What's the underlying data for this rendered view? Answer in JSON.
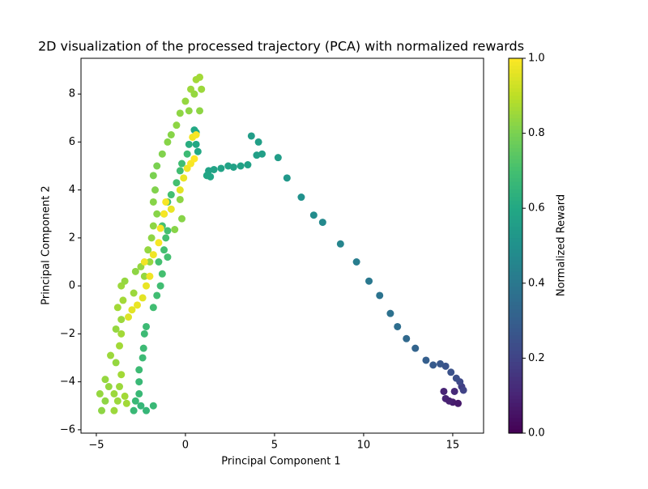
{
  "chart_data": {
    "type": "scatter",
    "title": "2D visualization of the processed trajectory (PCA) with normalized rewards",
    "xlabel": "Principal Component 1",
    "ylabel": "Principal Component 2",
    "colorbar_label": "Normalized Reward",
    "colormap": "viridis",
    "xlim": [
      -5.86,
      16.73
    ],
    "ylim": [
      -6.14,
      9.49
    ],
    "clim": [
      0,
      1
    ],
    "xticks": [
      {
        "value": -5,
        "label": "−5"
      },
      0,
      5,
      10,
      15
    ],
    "yticks": [
      {
        "value": -6,
        "label": "−6"
      },
      {
        "value": -4,
        "label": "−4"
      },
      {
        "value": -2,
        "label": "−2"
      },
      0,
      2,
      4,
      6,
      8
    ],
    "cticks": [
      {
        "value": 0,
        "label": "0.0"
      },
      {
        "value": 0.2,
        "label": "0.2"
      },
      {
        "value": 0.4,
        "label": "0.4"
      },
      {
        "value": 0.6,
        "label": "0.6"
      },
      {
        "value": 0.8,
        "label": "0.8"
      },
      {
        "value": 1,
        "label": "1.0"
      }
    ],
    "x": [
      14.5,
      14.6,
      15.0,
      15.3,
      14.8,
      15.1,
      15.5,
      15.6,
      15.4,
      15.2,
      14.9,
      14.6,
      14.3,
      13.9,
      13.5,
      12.9,
      12.4,
      11.9,
      11.5,
      10.9,
      10.3,
      9.6,
      8.7,
      7.7,
      7.2,
      6.5,
      5.7,
      5.2,
      4.3,
      4.0,
      4.1,
      3.7,
      3.5,
      3.1,
      2.7,
      2.4,
      2.0,
      1.6,
      1.3,
      1.4,
      1.2,
      0.6,
      0.6,
      0.7,
      0.2,
      0.5,
      -2.5,
      -2.2,
      -1.8,
      -2.8,
      -2.9,
      -2.6,
      -2.6,
      -2.6,
      -2.4,
      -2.35,
      -2.3,
      -2.2,
      -1.8,
      -1.6,
      -1.4,
      -1.3,
      -1.5,
      -1.2,
      -1.1,
      -1.0,
      -1.2,
      -1.0,
      -0.8,
      -0.5,
      -0.3,
      -0.2,
      0.1,
      -1.0,
      -1.3,
      -4.7,
      -4.5,
      -4.8,
      -4.3,
      -4.5,
      -4.0,
      -4.0,
      -3.8,
      -3.7,
      -3.6,
      -3.9,
      -4.2,
      -3.7,
      -3.3,
      -3.4,
      -3.6,
      -3.9,
      -3.6,
      -3.8,
      -3.5,
      -3.6,
      -3.4,
      -2.9,
      -2.8,
      -2.5,
      -2.3,
      -2.0,
      -2.1,
      -1.9,
      -1.8,
      -1.6,
      -1.8,
      -1.7,
      -1.8,
      -1.6,
      -1.3,
      -1.0,
      -0.8,
      -0.5,
      -0.3,
      0.0,
      0.3,
      0.6,
      0.8,
      0.5,
      0.8,
      0.2,
      0.9,
      -0.6,
      -0.3,
      -0.2,
      -2.2,
      -2.0,
      -2.4,
      -2.3,
      -1.8,
      -1.5,
      -1.4,
      -1.2,
      -1.1,
      -0.8,
      -0.3,
      -0.1,
      0.1,
      0.3,
      0.5,
      0.4,
      0.6,
      -3.2,
      -3.0,
      -2.7
    ],
    "y": [
      -4.4,
      -4.7,
      -4.85,
      -4.9,
      -4.8,
      -4.4,
      -4.2,
      -4.35,
      -4.0,
      -3.85,
      -3.6,
      -3.35,
      -3.25,
      -3.3,
      -3.1,
      -2.6,
      -2.2,
      -1.7,
      -1.15,
      -0.4,
      0.2,
      1.0,
      1.75,
      2.65,
      2.95,
      3.7,
      4.5,
      5.35,
      5.5,
      5.45,
      6.0,
      6.25,
      5.05,
      5.0,
      4.95,
      5.0,
      4.9,
      4.85,
      4.8,
      4.55,
      4.6,
      6.4,
      5.9,
      5.6,
      5.9,
      6.5,
      -5.0,
      -5.2,
      -5.0,
      -4.8,
      -5.2,
      -4.5,
      -4.0,
      -3.5,
      -3.0,
      -2.6,
      -2.0,
      -1.7,
      -0.9,
      -0.4,
      0.0,
      0.5,
      1.0,
      1.5,
      2.0,
      2.3,
      3.0,
      3.5,
      3.8,
      4.3,
      4.8,
      5.1,
      5.5,
      1.2,
      2.5,
      -5.2,
      -4.8,
      -4.5,
      -4.2,
      -3.9,
      -4.5,
      -5.2,
      -4.8,
      -4.2,
      -3.7,
      -3.2,
      -2.9,
      -2.5,
      -4.9,
      -4.6,
      -2.0,
      -1.8,
      -1.4,
      -0.9,
      -0.6,
      0.0,
      0.2,
      -0.3,
      0.6,
      0.8,
      0.4,
      1.0,
      1.5,
      2.0,
      2.5,
      3.0,
      3.5,
      4.0,
      4.6,
      5.0,
      5.5,
      6.0,
      6.3,
      6.7,
      7.2,
      7.7,
      8.2,
      8.6,
      8.7,
      8.0,
      7.3,
      7.3,
      8.2,
      2.35,
      3.6,
      2.8,
      0.0,
      0.4,
      -0.5,
      1.0,
      1.3,
      1.8,
      2.4,
      3.0,
      3.5,
      3.2,
      4.0,
      4.5,
      4.9,
      5.1,
      5.3,
      6.2,
      6.3,
      -1.3,
      -1.0,
      -0.8
    ],
    "values": [
      0.1,
      0.1,
      0.08,
      0.07,
      0.09,
      0.12,
      0.18,
      0.2,
      0.22,
      0.24,
      0.25,
      0.26,
      0.27,
      0.28,
      0.3,
      0.32,
      0.34,
      0.36,
      0.37,
      0.38,
      0.4,
      0.42,
      0.45,
      0.47,
      0.48,
      0.5,
      0.53,
      0.55,
      0.56,
      0.56,
      0.56,
      0.55,
      0.57,
      0.57,
      0.57,
      0.58,
      0.58,
      0.58,
      0.58,
      0.59,
      0.59,
      0.6,
      0.6,
      0.6,
      0.62,
      0.6,
      0.66,
      0.66,
      0.67,
      0.67,
      0.67,
      0.67,
      0.67,
      0.68,
      0.68,
      0.68,
      0.68,
      0.68,
      0.69,
      0.69,
      0.69,
      0.7,
      0.7,
      0.7,
      0.7,
      0.7,
      0.7,
      0.7,
      0.7,
      0.7,
      0.69,
      0.69,
      0.68,
      0.7,
      0.7,
      0.83,
      0.83,
      0.84,
      0.84,
      0.84,
      0.85,
      0.85,
      0.85,
      0.85,
      0.86,
      0.84,
      0.85,
      0.86,
      0.86,
      0.86,
      0.86,
      0.84,
      0.85,
      0.86,
      0.86,
      0.85,
      0.84,
      0.85,
      0.83,
      0.84,
      0.84,
      0.84,
      0.84,
      0.83,
      0.83,
      0.82,
      0.82,
      0.81,
      0.8,
      0.8,
      0.81,
      0.82,
      0.82,
      0.83,
      0.83,
      0.84,
      0.85,
      0.86,
      0.86,
      0.84,
      0.83,
      0.83,
      0.85,
      0.82,
      0.83,
      0.82,
      0.97,
      0.98,
      0.96,
      0.98,
      0.98,
      0.99,
      0.99,
      0.99,
      0.99,
      0.97,
      0.96,
      0.97,
      0.98,
      0.99,
      1.0,
      0.98,
      0.99,
      0.95,
      0.96,
      0.97
    ]
  }
}
